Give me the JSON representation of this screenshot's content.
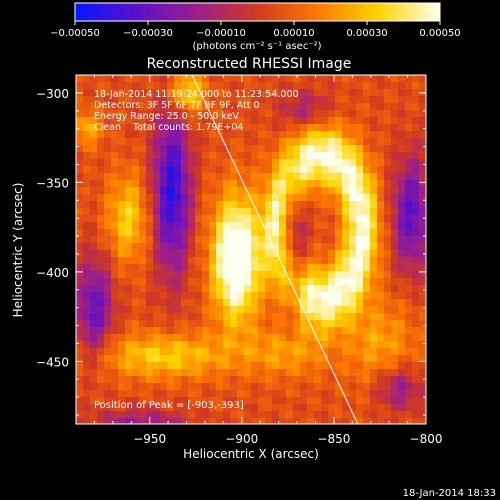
{
  "chart_data": {
    "type": "heatmap",
    "title": "Reconstructed RHESSI Image",
    "xlabel": "Heliocentric X (arcsec)",
    "ylabel": "Heliocentric Y (arcsec)",
    "xlim": [
      -990,
      -800
    ],
    "ylim": [
      -485,
      -290
    ],
    "xticks": [
      -950,
      -900,
      -850,
      -800
    ],
    "yticks": [
      -300,
      -350,
      -400,
      -450
    ],
    "x_tick_labels": [
      "−950",
      "−900",
      "−850",
      "−800"
    ],
    "y_tick_labels": [
      "−300",
      "−350",
      "−400",
      "−450"
    ],
    "colorbar": {
      "range": [
        -0.0005,
        0.0005
      ],
      "ticks": [
        -0.0005,
        -0.0003,
        -0.0001,
        0.0001,
        0.0003,
        0.0005
      ],
      "tick_labels": [
        "−0.00050",
        "−0.00030",
        "−0.00010",
        "0.00010",
        "0.00030",
        "0.00050"
      ],
      "units_text": "(photons cm⁻² s⁻¹ asec⁻²)",
      "colors": [
        "#0018ff",
        "#5c10c8",
        "#9a1e8e",
        "#d23a1e",
        "#ff7a00",
        "#ffd400",
        "#fffff0"
      ]
    },
    "info_lines": [
      "18-Jan-2014 11:19:24.000 to 11:23:54.000",
      "Detectors: 3F 5F 6F 7F 8F 9F, Att 0",
      "Energy Range: 25.0 - 50.0 keV",
      "Clean    Total counts: 1.79E+04"
    ],
    "peak_label": "Position of Peak = [-903,-393]",
    "peak": {
      "x": -903,
      "y": -393
    },
    "limb_line": {
      "x1": -927,
      "y1": -290,
      "x2": -837,
      "y2": -485
    },
    "features": [
      {
        "x": -903,
        "y": -393,
        "sx": 9,
        "sy": 24,
        "amp": 1.0
      },
      {
        "x": -930,
        "y": -300,
        "sx": 7,
        "sy": 8,
        "amp": 0.55
      },
      {
        "x": -962,
        "y": -370,
        "sx": 8,
        "sy": 17,
        "amp": 0.45
      },
      {
        "x": -984,
        "y": -320,
        "sx": 6,
        "sy": 7,
        "amp": 0.35
      },
      {
        "x": -942,
        "y": -447,
        "sx": 26,
        "sy": 9,
        "amp": 0.45
      },
      {
        "x": -875,
        "y": -445,
        "sx": 15,
        "sy": 10,
        "amp": 0.3
      },
      {
        "x": -825,
        "y": -440,
        "sx": 14,
        "sy": 18,
        "amp": 0.3
      },
      {
        "x": -938,
        "y": -355,
        "sx": 7,
        "sy": 32,
        "amp": -0.75
      },
      {
        "x": -980,
        "y": -420,
        "sx": 7,
        "sy": 20,
        "amp": -0.55
      },
      {
        "x": -872,
        "y": -385,
        "sx": 5,
        "sy": 26,
        "amp": -0.55
      },
      {
        "x": -808,
        "y": -368,
        "sx": 7,
        "sy": 22,
        "amp": -0.6
      },
      {
        "x": -815,
        "y": -465,
        "sx": 9,
        "sy": 9,
        "amp": -0.4
      },
      {
        "x": -865,
        "y": -310,
        "sx": 10,
        "sy": 8,
        "amp": -0.3
      },
      {
        "x": -955,
        "y": -485,
        "sx": 18,
        "sy": 6,
        "amp": -0.35
      }
    ],
    "ring": {
      "x": -857,
      "y": -375,
      "rx": 22,
      "ry": 40,
      "width": 7,
      "amp": 0.72
    }
  },
  "timestamp": "18-Jan-2014 18:33"
}
